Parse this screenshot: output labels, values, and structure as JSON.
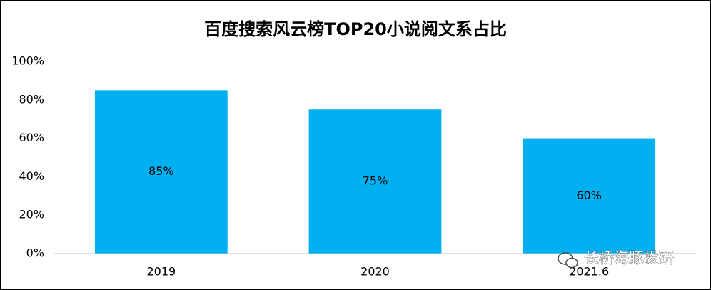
{
  "chart_data": {
    "type": "bar",
    "title": "百度搜索风云榜TOP20小说阅文系占比",
    "categories": [
      "2019",
      "2020",
      "2021.6"
    ],
    "values": [
      85,
      75,
      60
    ],
    "value_labels": [
      "85%",
      "75%",
      "60%"
    ],
    "color": "#00b0f0",
    "ylim": [
      0,
      100
    ],
    "yticks": [
      {
        "value": 0,
        "label": "0%"
      },
      {
        "value": 20,
        "label": "20%"
      },
      {
        "value": 40,
        "label": "40%"
      },
      {
        "value": 60,
        "label": "60%"
      },
      {
        "value": 80,
        "label": "80%"
      },
      {
        "value": 100,
        "label": "100%"
      }
    ],
    "grid": false,
    "watermark": "长桥海豚投研"
  }
}
